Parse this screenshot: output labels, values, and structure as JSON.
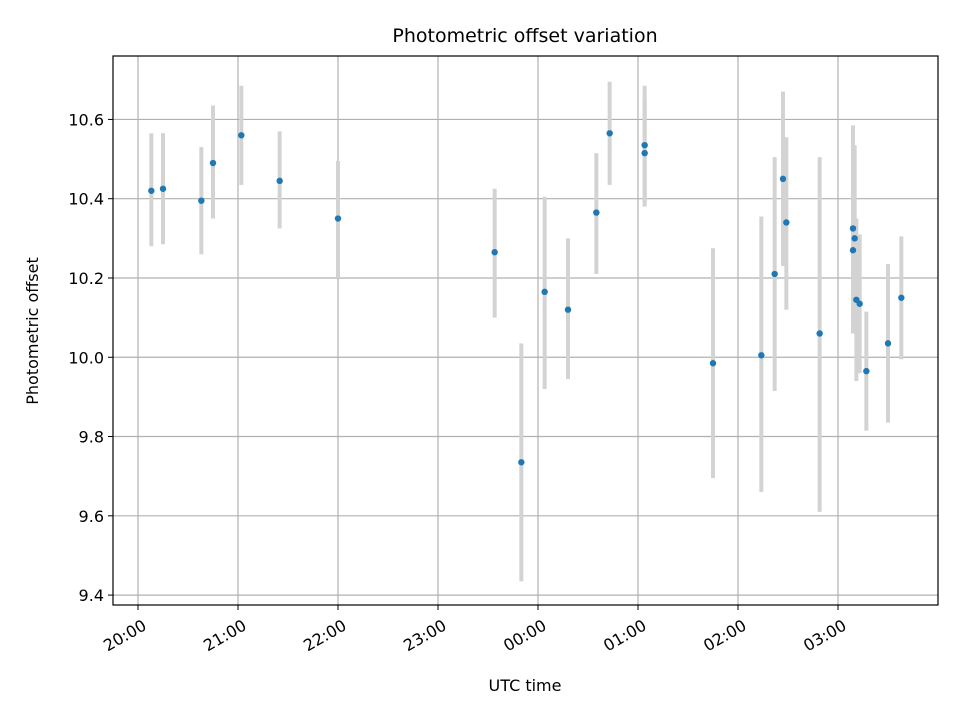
{
  "chart_data": {
    "type": "scatter",
    "title": "Photometric offset variation",
    "xlabel": "UTC time",
    "ylabel": "Photometric offset",
    "grid": true,
    "xaxis": {
      "kind": "time",
      "range": [
        "19:45",
        "28:00"
      ],
      "ticks": [
        "20:00",
        "21:00",
        "22:00",
        "23:00",
        "00:00",
        "01:00",
        "02:00",
        "03:00"
      ],
      "tick_positions": [
        "20:00",
        "21:00",
        "22:00",
        "23:00",
        "24:00",
        "25:00",
        "26:00",
        "27:00"
      ]
    },
    "ylim": [
      9.375,
      10.76
    ],
    "yticks": [
      9.4,
      9.6,
      9.8,
      10.0,
      10.2,
      10.4,
      10.6
    ],
    "ytick_labels": [
      "9.4",
      "9.6",
      "9.8",
      "10.0",
      "10.2",
      "10.4",
      "10.6"
    ],
    "colors": {
      "marker": "#1f77b4",
      "errorbar": "#d3d3d3",
      "grid": "#b0b0b0"
    },
    "points": [
      {
        "x": "20:08",
        "y": 10.42,
        "ylo": 10.28,
        "yhi": 10.565
      },
      {
        "x": "20:15",
        "y": 10.425,
        "ylo": 10.285,
        "yhi": 10.565
      },
      {
        "x": "20:38",
        "y": 10.395,
        "ylo": 10.26,
        "yhi": 10.53
      },
      {
        "x": "20:45",
        "y": 10.49,
        "ylo": 10.35,
        "yhi": 10.635
      },
      {
        "x": "21:02",
        "y": 10.56,
        "ylo": 10.435,
        "yhi": 10.685
      },
      {
        "x": "21:25",
        "y": 10.445,
        "ylo": 10.325,
        "yhi": 10.57
      },
      {
        "x": "22:00",
        "y": 10.35,
        "ylo": 10.2,
        "yhi": 10.495
      },
      {
        "x": "23:34",
        "y": 10.265,
        "ylo": 10.1,
        "yhi": 10.425
      },
      {
        "x": "23:50",
        "y": 9.735,
        "ylo": 9.435,
        "yhi": 10.035
      },
      {
        "x": "00:04",
        "y": 10.165,
        "ylo": 9.92,
        "yhi": 10.405
      },
      {
        "x": "00:18",
        "y": 10.12,
        "ylo": 9.945,
        "yhi": 10.3
      },
      {
        "x": "00:35",
        "y": 10.365,
        "ylo": 10.21,
        "yhi": 10.515
      },
      {
        "x": "00:43",
        "y": 10.565,
        "ylo": 10.435,
        "yhi": 10.695
      },
      {
        "x": "01:04",
        "y": 10.515,
        "ylo": 10.38,
        "yhi": 10.65
      },
      {
        "x": "01:04",
        "y": 10.535,
        "ylo": 10.39,
        "yhi": 10.685
      },
      {
        "x": "01:45",
        "y": 9.985,
        "ylo": 9.695,
        "yhi": 10.275
      },
      {
        "x": "02:14",
        "y": 10.005,
        "ylo": 9.66,
        "yhi": 10.355
      },
      {
        "x": "02:22",
        "y": 10.21,
        "ylo": 9.915,
        "yhi": 10.505
      },
      {
        "x": "02:27",
        "y": 10.45,
        "ylo": 10.23,
        "yhi": 10.67
      },
      {
        "x": "02:29",
        "y": 10.34,
        "ylo": 10.12,
        "yhi": 10.555
      },
      {
        "x": "02:49",
        "y": 10.06,
        "ylo": 9.61,
        "yhi": 10.505
      },
      {
        "x": "03:09",
        "y": 10.325,
        "ylo": 10.06,
        "yhi": 10.585
      },
      {
        "x": "03:09",
        "y": 10.27,
        "ylo": 10.06,
        "yhi": 10.485
      },
      {
        "x": "03:10",
        "y": 10.3,
        "ylo": 10.06,
        "yhi": 10.535
      },
      {
        "x": "03:11",
        "y": 10.145,
        "ylo": 9.94,
        "yhi": 10.35
      },
      {
        "x": "03:13",
        "y": 10.135,
        "ylo": 9.96,
        "yhi": 10.31
      },
      {
        "x": "03:17",
        "y": 9.965,
        "ylo": 9.815,
        "yhi": 10.115
      },
      {
        "x": "03:30",
        "y": 10.035,
        "ylo": 9.835,
        "yhi": 10.235
      },
      {
        "x": "03:38",
        "y": 10.15,
        "ylo": 9.995,
        "yhi": 10.305
      }
    ]
  }
}
